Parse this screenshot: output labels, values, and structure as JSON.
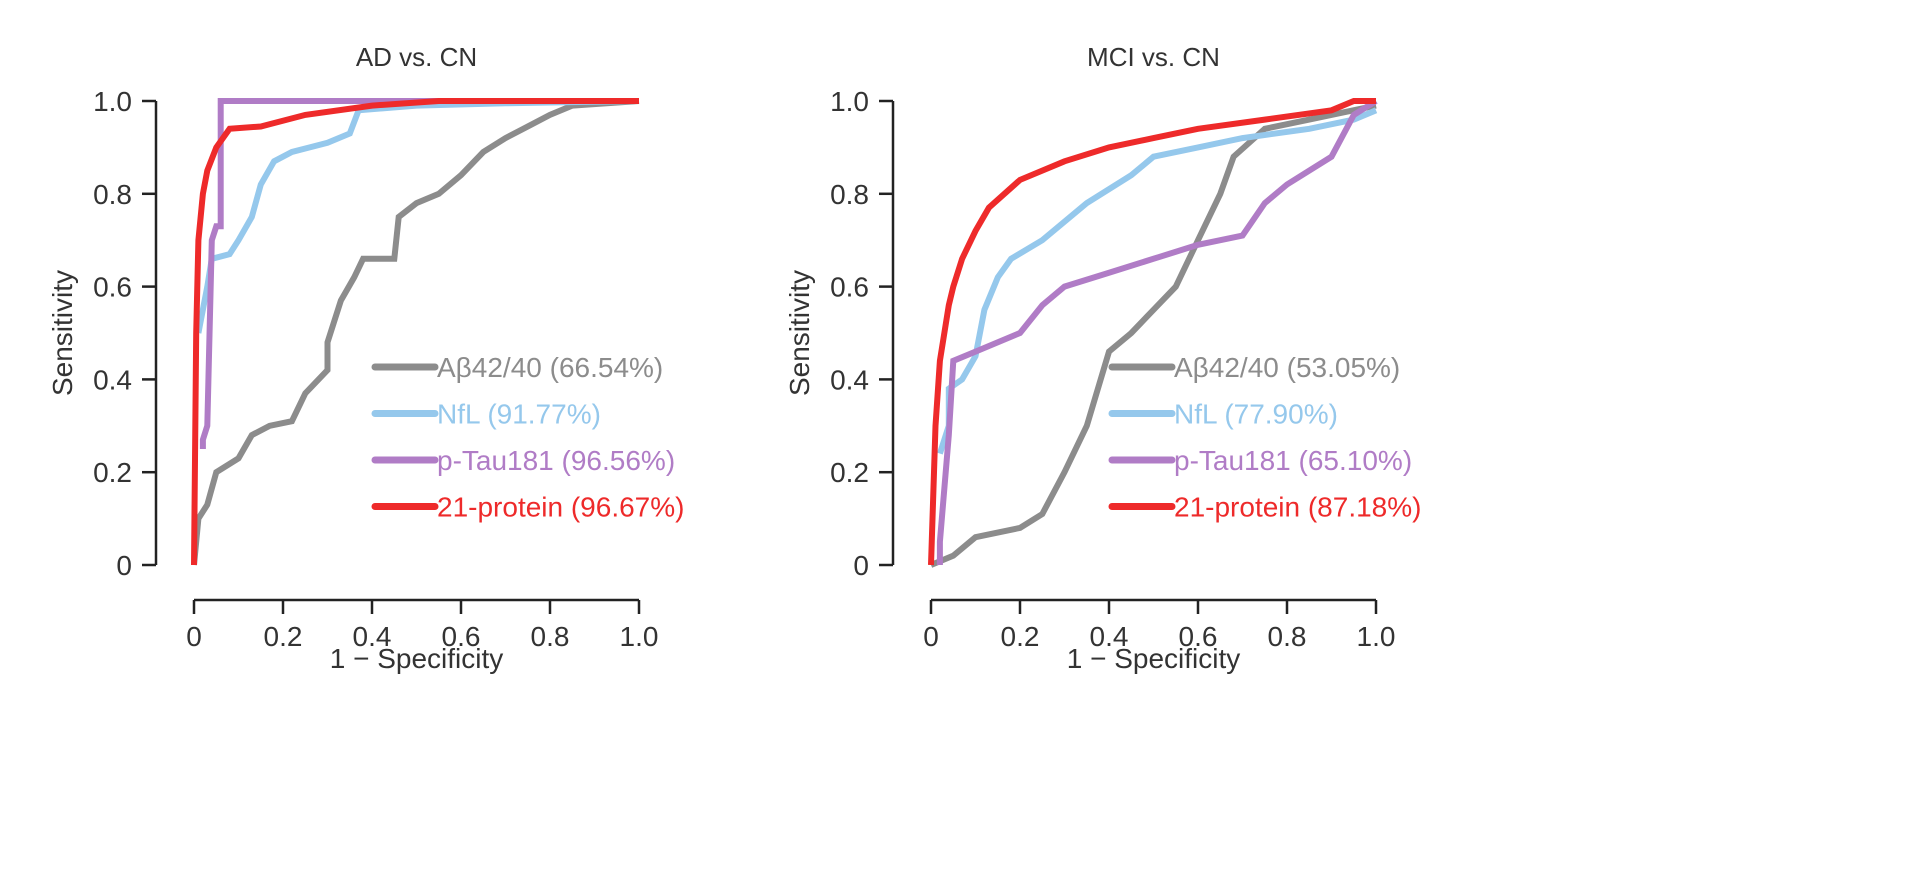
{
  "chart_data": [
    {
      "type": "line",
      "title": "AD vs. CN",
      "xlabel": "1 − Specificity",
      "ylabel": "Sensitivity",
      "xlim": [
        0,
        1
      ],
      "ylim": [
        0,
        1
      ],
      "xticks": [
        "0",
        "0.2",
        "0.4",
        "0.6",
        "0.8",
        "1.0"
      ],
      "yticks": [
        "0",
        "0.2",
        "0.4",
        "0.6",
        "0.8",
        "1.0"
      ],
      "grid": false,
      "legend": "bottom-right",
      "series": [
        {
          "name": "Aβ42/40 (66.54%)",
          "color": "#8c8c8c",
          "x": [
            0,
            0.01,
            0.03,
            0.05,
            0.1,
            0.13,
            0.17,
            0.22,
            0.25,
            0.3,
            0.3,
            0.33,
            0.36,
            0.38,
            0.45,
            0.46,
            0.5,
            0.55,
            0.6,
            0.65,
            0.7,
            0.8,
            0.85,
            1
          ],
          "y": [
            0,
            0.1,
            0.13,
            0.2,
            0.23,
            0.28,
            0.3,
            0.31,
            0.37,
            0.42,
            0.48,
            0.57,
            0.62,
            0.66,
            0.66,
            0.75,
            0.78,
            0.8,
            0.84,
            0.89,
            0.92,
            0.97,
            0.99,
            1
          ]
        },
        {
          "name": "NfL (91.77%)",
          "color": "#95c8ec",
          "x": [
            0.01,
            0.03,
            0.04,
            0.08,
            0.1,
            0.13,
            0.15,
            0.18,
            0.22,
            0.26,
            0.3,
            0.35,
            0.37,
            0.5,
            0.7,
            1
          ],
          "y": [
            0.5,
            0.6,
            0.66,
            0.67,
            0.7,
            0.75,
            0.82,
            0.87,
            0.89,
            0.9,
            0.91,
            0.93,
            0.98,
            0.99,
            0.995,
            1
          ]
        },
        {
          "name": "p-Tau181 (96.56%)",
          "color": "#b07cc6",
          "x": [
            0.02,
            0.02,
            0.03,
            0.04,
            0.05,
            0.06,
            0.06,
            1
          ],
          "y": [
            0.25,
            0.27,
            0.3,
            0.7,
            0.73,
            0.73,
            1,
            1
          ]
        },
        {
          "name": "21-protein (96.67%)",
          "color": "#ee2a2a",
          "x": [
            0,
            0.005,
            0.01,
            0.02,
            0.03,
            0.05,
            0.08,
            0.15,
            0.25,
            0.4,
            0.55,
            1
          ],
          "y": [
            0,
            0.5,
            0.7,
            0.8,
            0.85,
            0.9,
            0.94,
            0.945,
            0.97,
            0.99,
            1,
            1
          ]
        }
      ]
    },
    {
      "type": "line",
      "title": "MCI vs. CN",
      "xlabel": "1 − Specificity",
      "ylabel": "Sensitivity",
      "xlim": [
        0,
        1
      ],
      "ylim": [
        0,
        1
      ],
      "xticks": [
        "0",
        "0.2",
        "0.4",
        "0.6",
        "0.8",
        "1.0"
      ],
      "yticks": [
        "0",
        "0.2",
        "0.4",
        "0.6",
        "0.8",
        "1.0"
      ],
      "grid": false,
      "legend": "bottom-right",
      "series": [
        {
          "name": "Aβ42/40 (53.05%)",
          "color": "#8c8c8c",
          "x": [
            0,
            0.05,
            0.1,
            0.2,
            0.25,
            0.3,
            0.35,
            0.4,
            0.45,
            0.5,
            0.55,
            0.6,
            0.65,
            0.68,
            0.75,
            0.85,
            1
          ],
          "y": [
            0,
            0.02,
            0.06,
            0.08,
            0.11,
            0.2,
            0.3,
            0.46,
            0.5,
            0.55,
            0.6,
            0.7,
            0.8,
            0.88,
            0.94,
            0.96,
            0.99
          ]
        },
        {
          "name": "NfL (77.90%)",
          "color": "#95c8ec",
          "x": [
            0.02,
            0.04,
            0.04,
            0.07,
            0.1,
            0.12,
            0.15,
            0.18,
            0.25,
            0.35,
            0.45,
            0.5,
            0.6,
            0.7,
            0.85,
            0.95,
            1
          ],
          "y": [
            0.24,
            0.3,
            0.38,
            0.4,
            0.45,
            0.55,
            0.62,
            0.66,
            0.7,
            0.78,
            0.84,
            0.88,
            0.9,
            0.92,
            0.94,
            0.96,
            0.98
          ]
        },
        {
          "name": "p-Tau181 (65.10%)",
          "color": "#b07cc6",
          "x": [
            0.02,
            0.02,
            0.04,
            0.05,
            0.1,
            0.2,
            0.25,
            0.3,
            0.4,
            0.5,
            0.6,
            0.7,
            0.75,
            0.8,
            0.9,
            0.95,
            1
          ],
          "y": [
            0,
            0.05,
            0.28,
            0.44,
            0.46,
            0.5,
            0.56,
            0.6,
            0.63,
            0.66,
            0.69,
            0.71,
            0.78,
            0.82,
            0.88,
            0.97,
            1
          ]
        },
        {
          "name": "21-protein (87.18%)",
          "color": "#ee2a2a",
          "x": [
            0,
            0.01,
            0.02,
            0.04,
            0.05,
            0.07,
            0.1,
            0.13,
            0.2,
            0.3,
            0.4,
            0.5,
            0.6,
            0.75,
            0.9,
            0.95,
            1
          ],
          "y": [
            0,
            0.3,
            0.44,
            0.56,
            0.6,
            0.66,
            0.72,
            0.77,
            0.83,
            0.87,
            0.9,
            0.92,
            0.94,
            0.96,
            0.98,
            1,
            1
          ]
        }
      ]
    }
  ]
}
